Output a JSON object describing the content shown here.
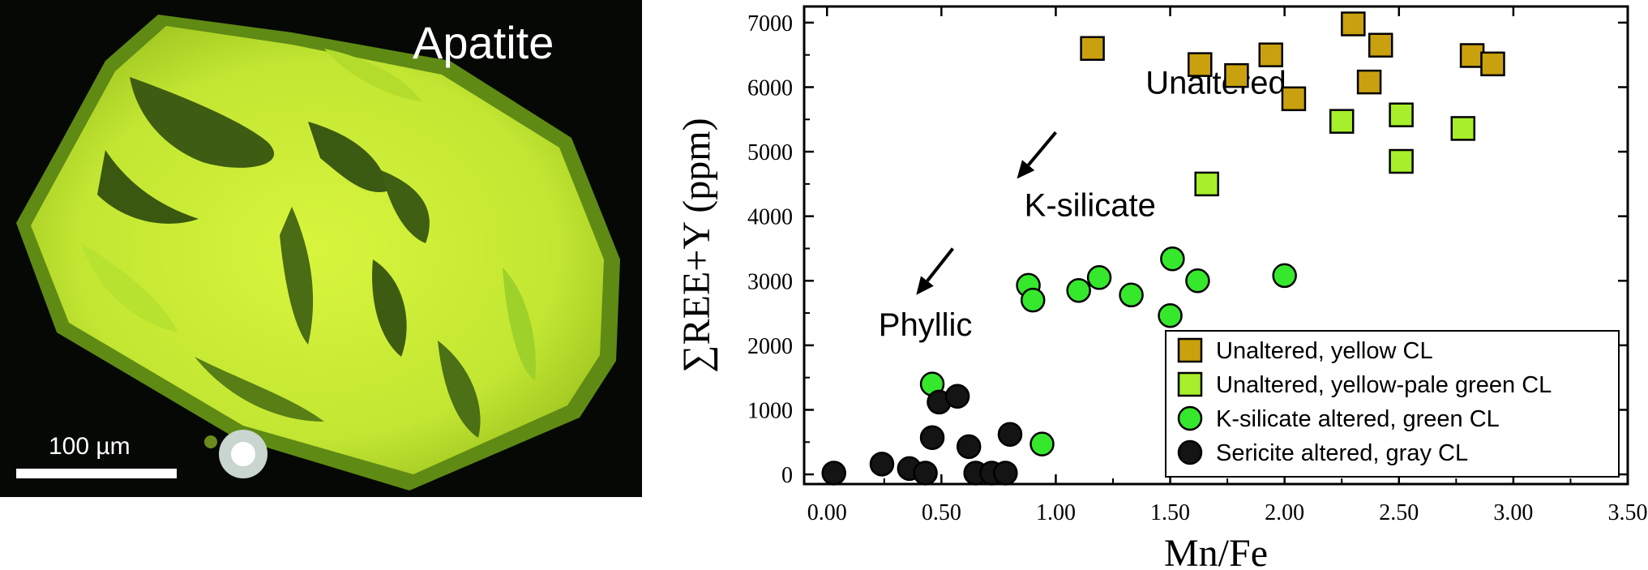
{
  "photo": {
    "title": "Apatite",
    "scale_label": "100 µm"
  },
  "chart_data": {
    "type": "scatter",
    "xlabel": "Mn/Fe",
    "ylabel": "∑REE+Y (ppm)",
    "xlim": [
      -0.1,
      3.5
    ],
    "ylim": [
      -150,
      7250
    ],
    "xticks": [
      "0.00",
      "0.50",
      "1.00",
      "1.50",
      "2.00",
      "2.50",
      "3.00",
      "3.50"
    ],
    "xtick_values": [
      0,
      0.5,
      1.0,
      1.5,
      2.0,
      2.5,
      3.0,
      3.5
    ],
    "yticks": [
      "0",
      "1000",
      "2000",
      "3000",
      "4000",
      "5000",
      "6000",
      "7000"
    ],
    "ytick_values": [
      0,
      1000,
      2000,
      3000,
      4000,
      5000,
      6000,
      7000
    ],
    "legend_position": "bottom-right",
    "annotations": [
      {
        "text": "Unaltered",
        "x": 1.7,
        "y": 5900
      },
      {
        "text": "K-silicate",
        "x": 1.15,
        "y": 4000
      },
      {
        "text": "Phyllic",
        "x": 0.43,
        "y": 2150
      }
    ],
    "arrows": [
      {
        "from": [
          1.0,
          5300
        ],
        "to": [
          0.83,
          4580
        ]
      },
      {
        "from": [
          0.55,
          3500
        ],
        "to": [
          0.39,
          2780
        ]
      }
    ],
    "series": [
      {
        "name": "Unaltered, yellow CL",
        "marker": "square",
        "color": "#c9a10f",
        "points": [
          [
            1.16,
            6600
          ],
          [
            1.63,
            6350
          ],
          [
            1.79,
            6180
          ],
          [
            1.94,
            6500
          ],
          [
            2.04,
            5820
          ],
          [
            2.3,
            6980
          ],
          [
            2.42,
            6650
          ],
          [
            2.37,
            6080
          ],
          [
            2.82,
            6490
          ],
          [
            2.91,
            6360
          ]
        ]
      },
      {
        "name": "Unaltered, yellow-pale green CL",
        "marker": "square",
        "color": "#a6ef2a",
        "points": [
          [
            2.25,
            5470
          ],
          [
            2.51,
            5570
          ],
          [
            2.78,
            5360
          ],
          [
            2.51,
            4850
          ],
          [
            1.66,
            4500
          ]
        ]
      },
      {
        "name": "K-silicate altered, green CL",
        "marker": "circle",
        "color": "#35e82c",
        "points": [
          [
            0.88,
            2930
          ],
          [
            0.9,
            2700
          ],
          [
            1.1,
            2850
          ],
          [
            1.19,
            3050
          ],
          [
            1.33,
            2780
          ],
          [
            1.51,
            3340
          ],
          [
            1.62,
            3000
          ],
          [
            1.5,
            2460
          ],
          [
            2.0,
            3080
          ],
          [
            0.46,
            1400
          ],
          [
            0.94,
            470
          ]
        ]
      },
      {
        "name": "Sericite altered, gray CL",
        "marker": "circle",
        "color": "#141414",
        "points": [
          [
            0.03,
            20
          ],
          [
            0.24,
            160
          ],
          [
            0.36,
            90
          ],
          [
            0.43,
            20
          ],
          [
            0.46,
            570
          ],
          [
            0.49,
            1120
          ],
          [
            0.57,
            1210
          ],
          [
            0.62,
            430
          ],
          [
            0.65,
            20
          ],
          [
            0.72,
            20
          ],
          [
            0.78,
            20
          ],
          [
            0.8,
            620
          ]
        ]
      }
    ]
  }
}
